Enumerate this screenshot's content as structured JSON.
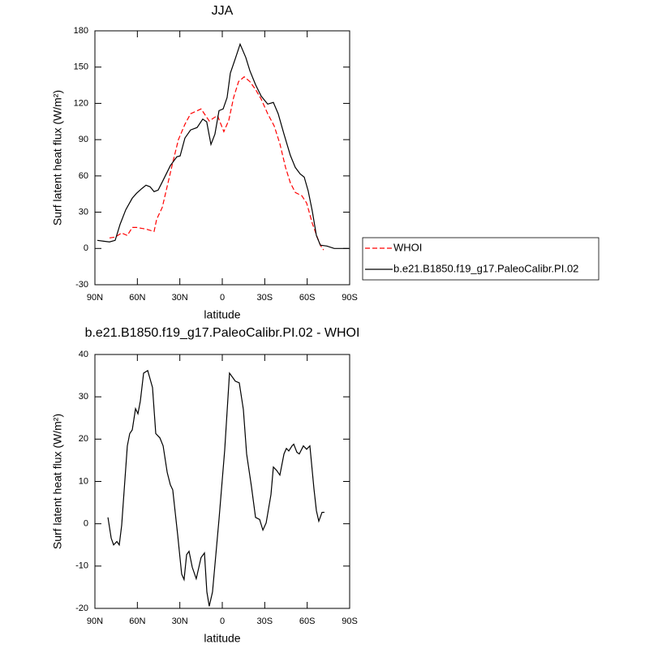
{
  "chart_data": [
    {
      "type": "line",
      "title": "JJA",
      "xlabel": "latitude",
      "ylabel": "Surf latent heat flux (W/m²)",
      "xlim": [
        90,
        -90
      ],
      "xticks": [
        {
          "value": 90,
          "label": "90N"
        },
        {
          "value": 60,
          "label": "60N"
        },
        {
          "value": 30,
          "label": "30N"
        },
        0,
        {
          "value": -30,
          "label": "30S"
        },
        {
          "value": -60,
          "label": "60S"
        },
        {
          "value": -90,
          "label": "90S"
        }
      ],
      "ylim": [
        -30,
        180
      ],
      "yticks": [
        -30,
        0,
        30,
        60,
        90,
        120,
        150,
        180
      ],
      "legend": "right",
      "series": [
        {
          "name": "WHOI",
          "color": "#ff0000",
          "line_style": "dashed",
          "x": [
            79.7,
            75.7,
            71.1,
            67.1,
            63.6,
            60.6,
            53.9,
            48.2,
            46.4,
            42.4,
            38.4,
            35,
            31,
            26.4,
            22.4,
            15,
            9.2,
            3.4,
            -1.1,
            -4.6,
            -8,
            -11.5,
            -15.5,
            -19.5,
            -23.5,
            -27.5,
            -32.1,
            -36.7,
            -40.7,
            -44.7,
            -48.1,
            -51.6,
            -56.2,
            -59.6,
            -63.6,
            -67.1,
            -69.3,
            -71.6
          ],
          "values": [
            8.7,
            9.4,
            12.8,
            10.7,
            17.4,
            17.4,
            16,
            14,
            24,
            34,
            54,
            71,
            90,
            102.7,
            111.4,
            115.4,
            105.4,
            110,
            96.6,
            106,
            124.8,
            138,
            142,
            138,
            131.5,
            123.5,
            111.4,
            101.3,
            86.6,
            67,
            54.3,
            46.3,
            43.6,
            37.6,
            20.8,
            9.4,
            2.7,
            -1.3
          ]
        },
        {
          "name": "b.e21.B1850.f19_g17.PaleoCalibr.PI.02",
          "color": "#000000",
          "line_style": "solid",
          "x": [
            88.3,
            79.7,
            75.7,
            72.2,
            68.2,
            63.6,
            60.6,
            56.8,
            53.9,
            51,
            48.2,
            45.3,
            42.4,
            36.7,
            32.1,
            29.8,
            26.4,
            22.4,
            17.8,
            13.8,
            11,
            8,
            5.2,
            2.3,
            -0.6,
            -3.4,
            -5.7,
            -9.2,
            -12.6,
            -16.6,
            -19.5,
            -23.5,
            -27.5,
            -32.1,
            -36.1,
            -39.5,
            -43.6,
            -48.1,
            -51.6,
            -55,
            -57.9,
            -60.7,
            -63.6,
            -66.5,
            -69.3,
            -73.9,
            -79.1,
            -89.4
          ],
          "values": [
            6.7,
            5.4,
            6.7,
            20,
            32,
            41.6,
            45.6,
            49.6,
            52.3,
            51,
            47,
            48.3,
            55,
            68.5,
            75.8,
            76.5,
            91.3,
            98,
            100,
            107,
            104.7,
            86,
            94.6,
            114,
            115.4,
            124.8,
            145,
            157,
            169,
            158,
            147,
            135.5,
            126,
            119.4,
            120.8,
            111.4,
            94.6,
            77,
            67,
            61.7,
            59,
            47.6,
            30.9,
            10.7,
            2.7,
            2,
            0,
            0
          ]
        }
      ]
    },
    {
      "type": "line",
      "title": "b.e21.B1850.f19_g17.PaleoCalibr.PI.02 - WHOI",
      "xlabel": "latitude",
      "ylabel": "Surf latent heat flux (W/m²)",
      "xlim": [
        90,
        -90
      ],
      "xticks": [
        {
          "value": 90,
          "label": "90N"
        },
        {
          "value": 60,
          "label": "60N"
        },
        {
          "value": 30,
          "label": "30N"
        },
        0,
        {
          "value": -30,
          "label": "30S"
        },
        {
          "value": -60,
          "label": "60S"
        },
        {
          "value": -90,
          "label": "90S"
        }
      ],
      "ylim": [
        -20,
        40
      ],
      "yticks": [
        -20,
        -10,
        0,
        10,
        20,
        30,
        40
      ],
      "series": [
        {
          "color": "#000000",
          "line_style": "solid",
          "x": [
            80.8,
            78.5,
            76.8,
            74.5,
            72.8,
            71.1,
            67.1,
            65.4,
            63.6,
            61.3,
            59.6,
            57.9,
            55.6,
            52.7,
            49.3,
            47,
            44.1,
            41.8,
            38.9,
            36.7,
            35,
            31.5,
            28.7,
            27,
            25.2,
            23.5,
            21.2,
            18.4,
            15,
            12.6,
            10.9,
            9.2,
            6.9,
            2.3,
            -1.7,
            -5.1,
            -9.2,
            -12,
            -14.9,
            -17.2,
            -20.6,
            -23.5,
            -26.4,
            -28.7,
            -31,
            -34.4,
            -36.1,
            -38.4,
            -40.7,
            -43.6,
            -45.3,
            -47,
            -49.3,
            -50.5,
            -52.7,
            -54.4,
            -57.3,
            -59.6,
            -61.9,
            -64.8,
            -66.5,
            -68.2,
            -70.5,
            -72.2
          ],
          "values": [
            1.5,
            -3.4,
            -5,
            -4.2,
            -5,
            -0.4,
            18.4,
            21.3,
            22.2,
            27.2,
            26,
            29,
            35.6,
            36.2,
            32.2,
            21.3,
            20.3,
            18.4,
            12.1,
            9.2,
            8,
            -2.7,
            -11.9,
            -13.2,
            -7.3,
            -6.5,
            -10.3,
            -13,
            -8,
            -6.9,
            -16.1,
            -19.5,
            -16.1,
            1.1,
            17.4,
            35.6,
            33.7,
            33.3,
            27,
            16.5,
            8.8,
            1.5,
            1,
            -1.5,
            0.2,
            6.9,
            13.4,
            12.6,
            11.5,
            16.5,
            17.8,
            17.2,
            18.4,
            18.8,
            16.9,
            16.5,
            18.4,
            17.6,
            18.4,
            8.2,
            3.1,
            0.6,
            2.7,
            2.7
          ]
        }
      ]
    }
  ]
}
